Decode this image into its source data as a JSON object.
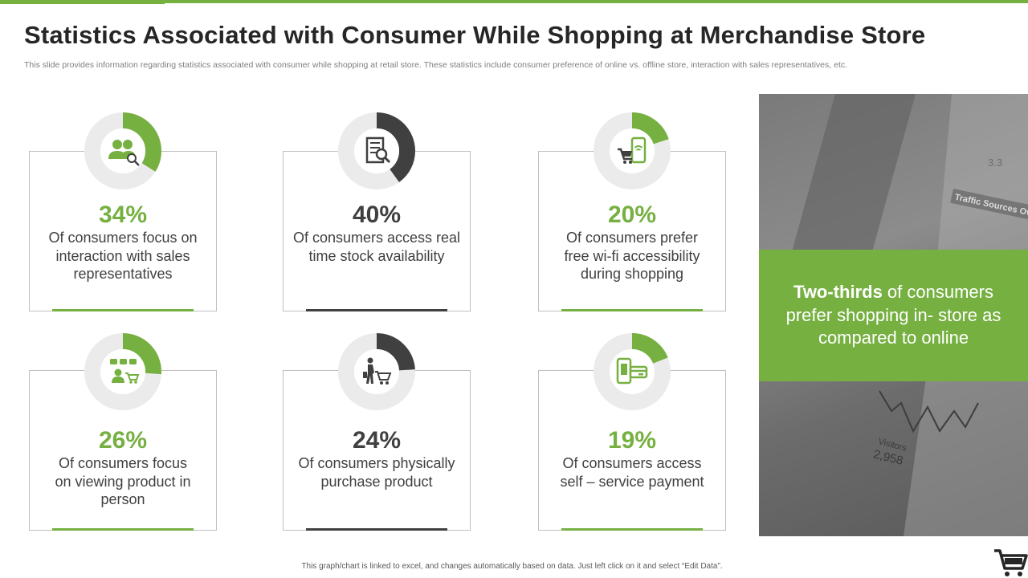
{
  "title": "Statistics Associated with Consumer While Shopping at Merchandise Store",
  "subtitle": "This slide provides information regarding statistics associated with consumer while shopping at retail store. These statistics include consumer preference of online vs. offline store, interaction with sales representatives, etc.",
  "colors": {
    "green": "#76b041",
    "dark": "#404040",
    "ring": "#ebebeb",
    "photo_band": "#76b041"
  },
  "stats": [
    {
      "value": "34%",
      "fraction": 0.34,
      "accent": "green",
      "icon": "consumers-search-icon",
      "description": "Of consumers focus on interaction with sales representatives"
    },
    {
      "value": "40%",
      "fraction": 0.4,
      "accent": "dark",
      "icon": "stock-search-icon",
      "description": "Of consumers access real time stock availability"
    },
    {
      "value": "20%",
      "fraction": 0.2,
      "accent": "green",
      "icon": "wifi-shopping-icon",
      "description": "Of consumers prefer free wi-fi accessibility during shopping"
    },
    {
      "value": "26%",
      "fraction": 0.26,
      "accent": "green",
      "icon": "viewing-product-icon",
      "description": "Of consumers focus on viewing product in person"
    },
    {
      "value": "24%",
      "fraction": 0.24,
      "accent": "dark",
      "icon": "shopper-cart-icon",
      "description": "Of consumers physically purchase product"
    },
    {
      "value": "19%",
      "fraction": 0.19,
      "accent": "green",
      "icon": "mobile-payment-icon",
      "description": "Of consumers access self – service payment"
    }
  ],
  "highlight": {
    "bold": "Two-thirds",
    "rest": " of consumers prefer shopping in- store as compared to online"
  },
  "photo_texts": {
    "traffic": "Traffic Sources Ove",
    "number": "3.3",
    "visitors": "Visitors",
    "visitors_value": "2,958"
  },
  "footer": "This graph/chart is linked to excel, and changes automatically based on data. Just left click on it and select “Edit Data”.",
  "corner_icon": "shopping-cart-icon"
}
